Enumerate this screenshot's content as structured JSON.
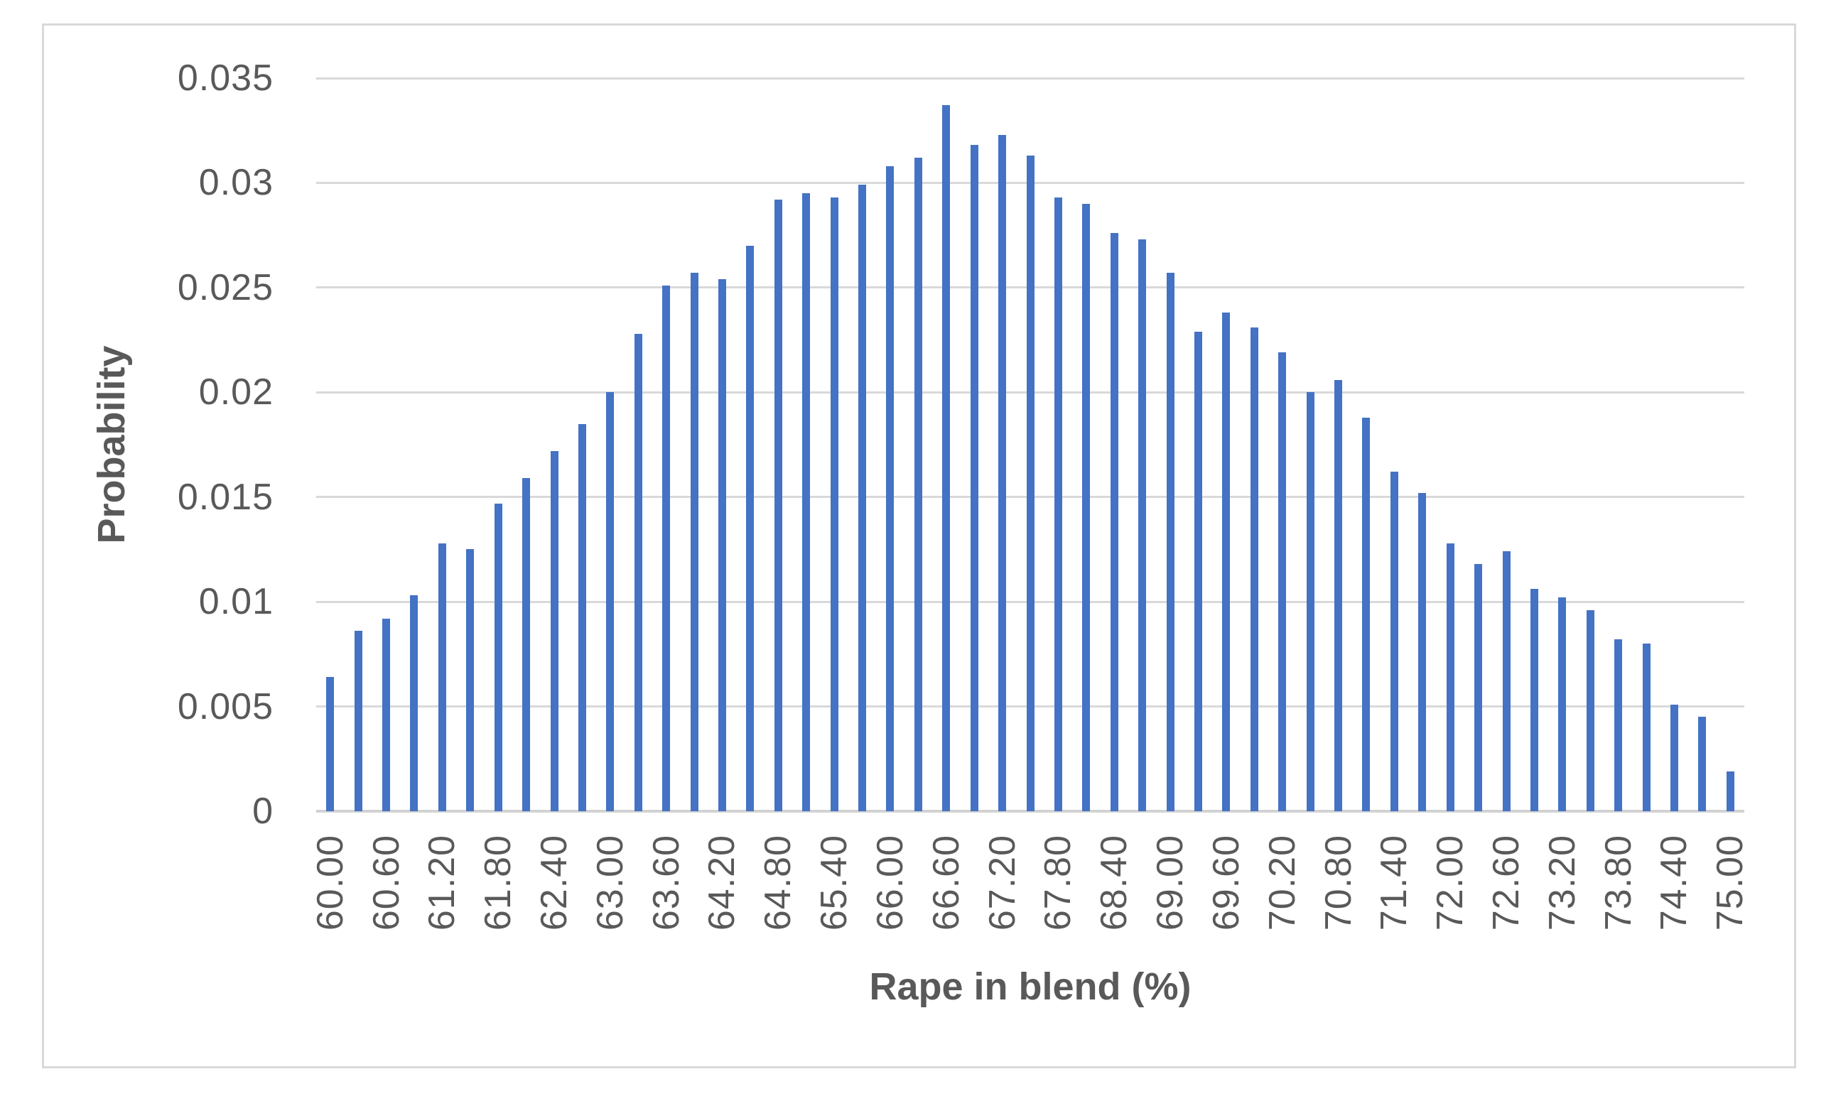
{
  "chart_data": {
    "type": "bar",
    "title": "",
    "xlabel": "Rape in blend (%)",
    "ylabel": "Probability",
    "categories": [
      "60.00",
      "60.30",
      "60.60",
      "60.90",
      "61.20",
      "61.50",
      "61.80",
      "62.10",
      "62.40",
      "62.70",
      "63.00",
      "63.30",
      "63.60",
      "63.90",
      "64.20",
      "64.50",
      "64.80",
      "65.10",
      "65.40",
      "65.70",
      "66.00",
      "66.30",
      "66.60",
      "66.90",
      "67.20",
      "67.50",
      "67.80",
      "68.10",
      "68.40",
      "68.70",
      "69.00",
      "69.30",
      "69.60",
      "69.90",
      "70.20",
      "70.50",
      "70.80",
      "71.10",
      "71.40",
      "71.70",
      "72.00",
      "72.30",
      "72.60",
      "72.90",
      "73.20",
      "73.50",
      "73.80",
      "74.10",
      "74.40",
      "74.70",
      "75.00"
    ],
    "values": [
      0.0064,
      0.0086,
      0.0092,
      0.0103,
      0.0128,
      0.0125,
      0.0147,
      0.0159,
      0.0172,
      0.0185,
      0.02,
      0.0228,
      0.0251,
      0.0257,
      0.0254,
      0.027,
      0.0292,
      0.0295,
      0.0293,
      0.0299,
      0.0308,
      0.0312,
      0.0337,
      0.0318,
      0.0323,
      0.0313,
      0.0293,
      0.029,
      0.0276,
      0.0273,
      0.0257,
      0.0229,
      0.0238,
      0.0231,
      0.0219,
      0.02,
      0.0206,
      0.0188,
      0.0162,
      0.0152,
      0.0128,
      0.0118,
      0.0124,
      0.0106,
      0.0102,
      0.0096,
      0.0082,
      0.008,
      0.0051,
      0.0045,
      0.0019
    ],
    "x_tick_label_interval": 2,
    "y_tick_labels": [
      "0",
      "0.005",
      "0.01",
      "0.015",
      "0.02",
      "0.025",
      "0.03",
      "0.035"
    ],
    "y_tick_values": [
      0,
      0.005,
      0.01,
      0.015,
      0.02,
      0.025,
      0.03,
      0.035
    ],
    "ylim": [
      0,
      0.035
    ],
    "grid": true,
    "legend": "none",
    "colors": {
      "bar": "#4472C4",
      "gridline": "#D9D9D9",
      "axis_line": "#D2D2D2",
      "text": "#595959",
      "frame_border": "#D9D9D9",
      "background": "#FFFFFF"
    }
  }
}
